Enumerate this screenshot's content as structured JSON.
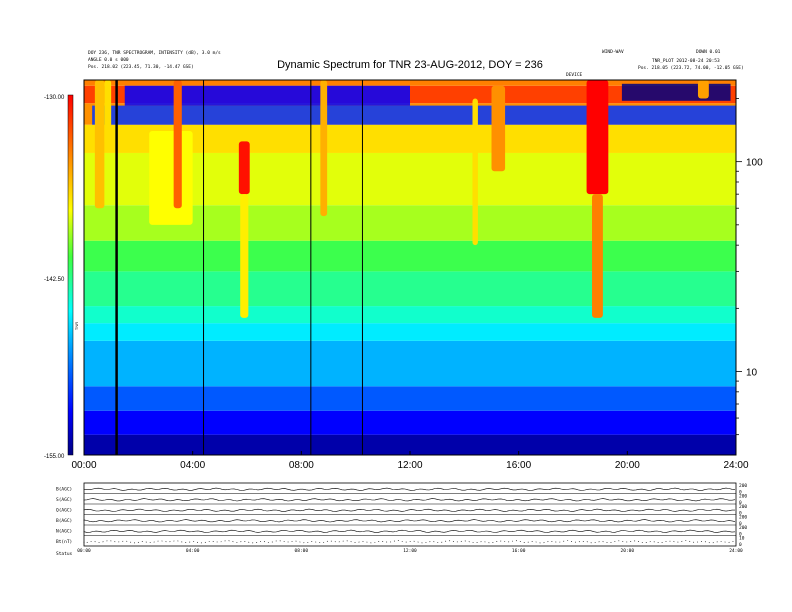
{
  "chart_data": {
    "type": "heatmap",
    "title": "Dynamic Spectrum for TNR 23-AUG-2012, DOY = 236",
    "header_left": [
      "DOY 236, TNR SPECTROGRAM, INTENSITY (dB), 3.0 m/s",
      "ANGLE 0.0 s 000",
      "Pos. 218.02 (223.45, 71.30, -14.47 GSE)"
    ],
    "header_right": [
      "WIND-WAV",
      "DOWN 0.01",
      "TNR_PLOT 2012-08-24 20:53",
      "Pos. 218.05 (223.72, 74.00, -12.05 GSE)"
    ],
    "colorbar": {
      "label": "TNR",
      "ticks": [
        "-130.00",
        "-142.50",
        "-155.00"
      ],
      "range": [
        -155.0,
        -130.0
      ]
    },
    "x": {
      "ticks": [
        "00:00",
        "04:00",
        "08:00",
        "12:00",
        "16:00",
        "20:00",
        "24:00"
      ],
      "range_hours": [
        0,
        24
      ]
    },
    "y": {
      "scale": "log",
      "ticks": [
        "100",
        "10"
      ],
      "range_khz": [
        4.0,
        245.0
      ]
    },
    "annotations": [
      "DEVICE"
    ],
    "data_gaps_hours": [
      1.2,
      4.4,
      8.35,
      10.25
    ],
    "background_bands": [
      {
        "f_low": 4.0,
        "f_high": 5.0,
        "db": -154.0
      },
      {
        "f_low": 5.0,
        "f_high": 6.5,
        "db": -152.0
      },
      {
        "f_low": 6.5,
        "f_high": 8.5,
        "db": -149.5
      },
      {
        "f_low": 8.5,
        "f_high": 14.0,
        "db": -147.0
      },
      {
        "f_low": 14.0,
        "f_high": 17.0,
        "db": -145.5
      },
      {
        "f_low": 17.0,
        "f_high": 20.5,
        "db": -144.0
      },
      {
        "f_low": 20.5,
        "f_high": 30.0,
        "db": -142.8
      },
      {
        "f_low": 30.0,
        "f_high": 42.0,
        "db": -141.5
      },
      {
        "f_low": 42.0,
        "f_high": 62.0,
        "db": -139.5
      },
      {
        "f_low": 62.0,
        "f_high": 110.0,
        "db": -138.5
      },
      {
        "f_low": 110.0,
        "f_high": 150.0,
        "db": -137.0
      },
      {
        "f_low": 150.0,
        "f_high": 190.0,
        "db": -134.5
      },
      {
        "f_low": 190.0,
        "f_high": 230.0,
        "db": -132.0
      },
      {
        "f_low": 230.0,
        "f_high": 245.0,
        "db": -134.0
      }
    ],
    "bursts": [
      {
        "t_start": 0.4,
        "t_end": 0.75,
        "f_low": 60.0,
        "f_high": 245.0,
        "db": -136.0
      },
      {
        "t_start": 0.75,
        "t_end": 1.0,
        "f_low": 120.0,
        "f_high": 245.0,
        "db": -137.0
      },
      {
        "t_start": 2.4,
        "t_end": 4.0,
        "f_low": 50.0,
        "f_high": 140.0,
        "db": -138.0
      },
      {
        "t_start": 3.3,
        "t_end": 3.6,
        "f_low": 60.0,
        "f_high": 245.0,
        "db": -133.0
      },
      {
        "t_start": 5.7,
        "t_end": 6.1,
        "f_low": 70.0,
        "f_high": 125.0,
        "db": -130.5
      },
      {
        "t_start": 5.75,
        "t_end": 6.05,
        "f_low": 18.0,
        "f_high": 70.0,
        "db": -137.5
      },
      {
        "t_start": 8.7,
        "t_end": 8.95,
        "f_low": 55.0,
        "f_high": 245.0,
        "db": -135.5
      },
      {
        "t_start": 14.3,
        "t_end": 14.5,
        "f_low": 40.0,
        "f_high": 200.0,
        "db": -137.0
      },
      {
        "t_start": 15.0,
        "t_end": 15.5,
        "f_low": 90.0,
        "f_high": 230.0,
        "db": -134.5
      },
      {
        "t_start": 18.5,
        "t_end": 19.3,
        "f_low": 70.0,
        "f_high": 245.0,
        "db": -130.0
      },
      {
        "t_start": 18.7,
        "t_end": 19.1,
        "f_low": 18.0,
        "f_high": 70.0,
        "db": -134.0
      },
      {
        "t_start": 22.6,
        "t_end": 23.0,
        "f_low": 200.0,
        "f_high": 245.0,
        "db": -135.0
      }
    ],
    "quiet_regions": [
      {
        "t_start": 19.8,
        "t_end": 23.8,
        "f_low": 195.0,
        "f_high": 235.0,
        "db": -155.0
      },
      {
        "t_start": 0.3,
        "t_end": 24.0,
        "f_low": 150.0,
        "f_high": 185.0,
        "db": -150.5
      },
      {
        "t_start": 1.5,
        "t_end": 12.0,
        "f_low": 185.0,
        "f_high": 230.0,
        "db": -152.0
      }
    ],
    "stack_panels": {
      "labels": [
        "B(AGC)",
        "S(AGC)",
        "Q(AGC)",
        "B(AGC)",
        "N(AGC)",
        "Bt(nT)"
      ],
      "right_ticks": [
        [
          "200",
          "0"
        ],
        [
          "200",
          "0"
        ],
        [
          "200",
          "0"
        ],
        [
          "200",
          "0"
        ],
        [
          "200",
          "0"
        ],
        [
          "10",
          "0"
        ]
      ],
      "x_ticks": [
        "00:00",
        "04:00",
        "08:00",
        "12:00",
        "16:00",
        "20:00",
        "24:00"
      ],
      "footer_label": "Status"
    }
  }
}
